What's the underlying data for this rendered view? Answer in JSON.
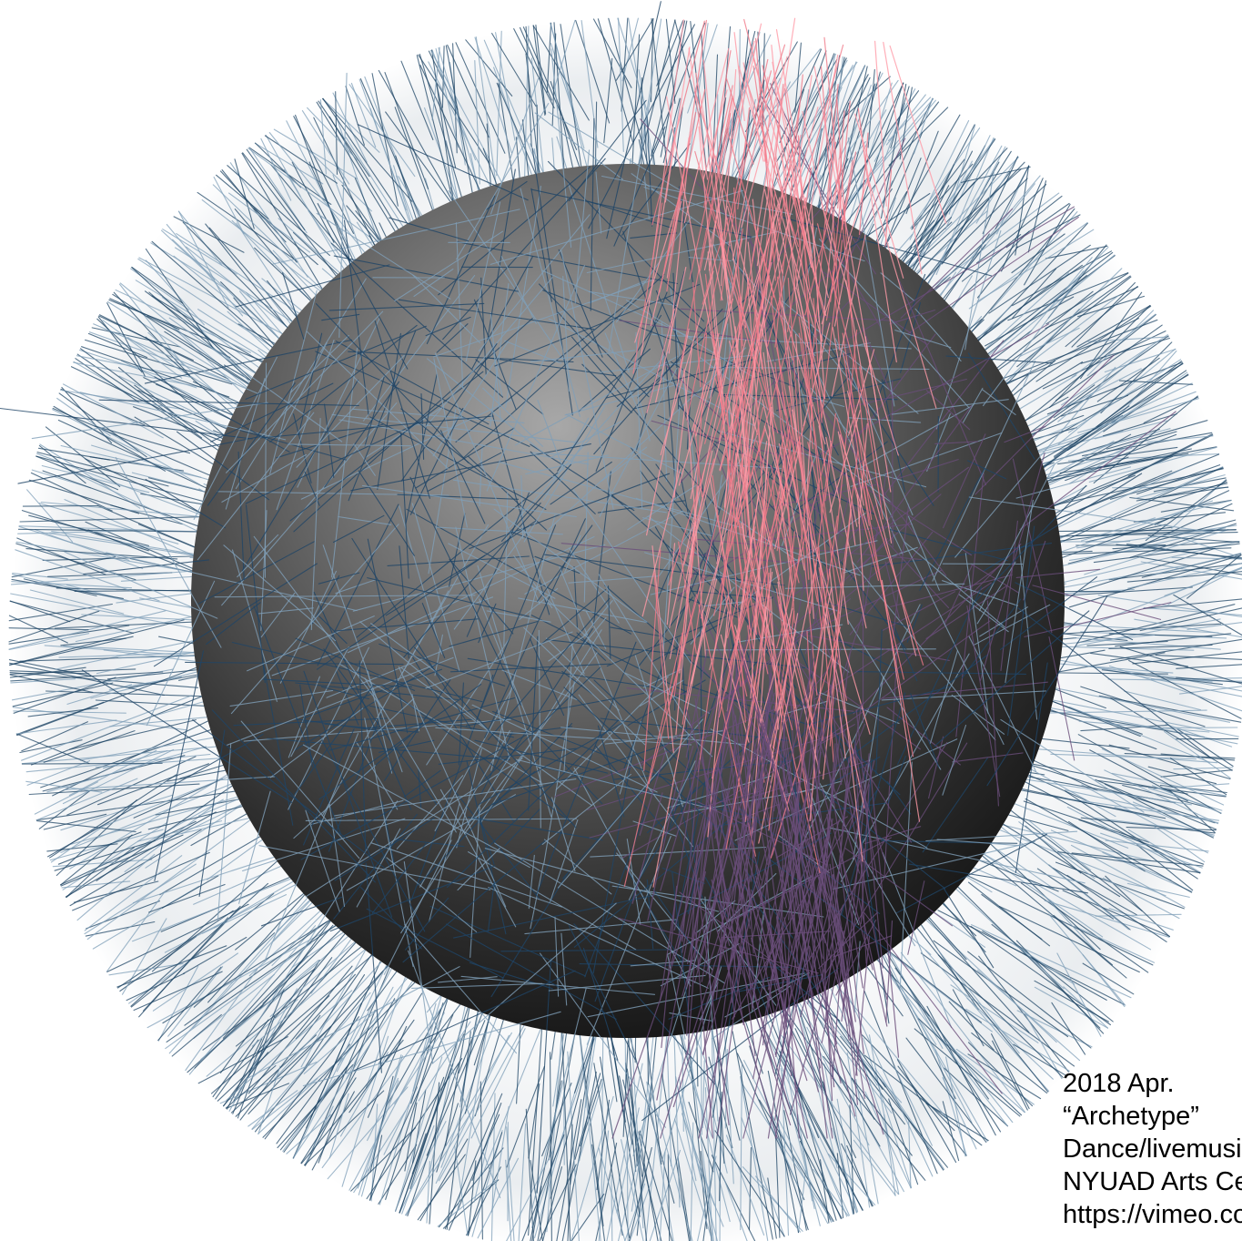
{
  "artwork": {
    "sphere_colors": {
      "highlight": "#9a9a9a",
      "mid": "#5a5a5a",
      "shadow": "#141414"
    },
    "strand_colors": {
      "blue_dark": "#1f4566",
      "blue_light": "#7f9fb8",
      "pink": "#f07a8a",
      "pink_light": "#ff9aa6",
      "purple": "#6a4e7a"
    },
    "background": "#ffffff"
  },
  "caption": {
    "lines": [
      "2018 Apr.",
      "“Archetype”",
      "Dance/livemusic",
      "NYUAD Arts Center",
      "https://vimeo.com/"
    ]
  }
}
